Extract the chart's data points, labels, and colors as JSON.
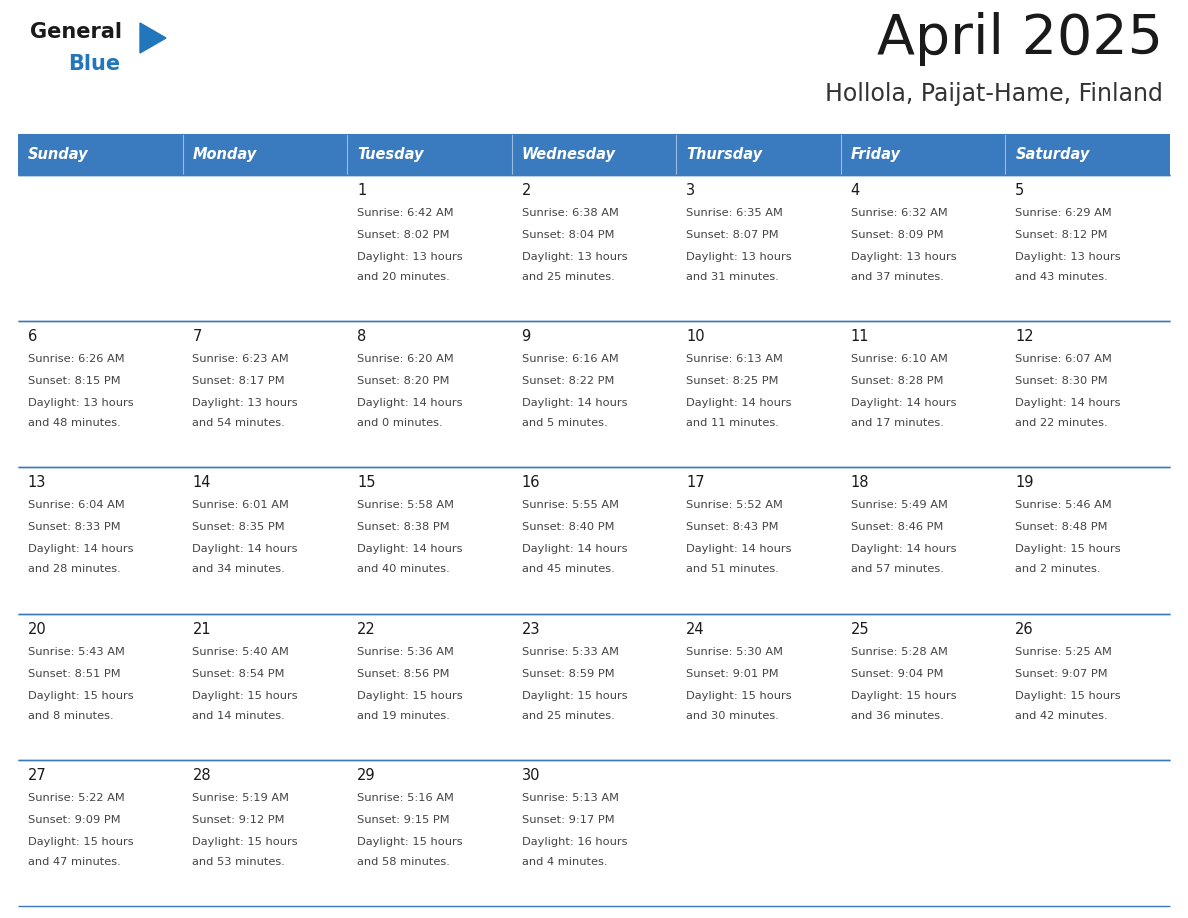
{
  "title": "April 2025",
  "subtitle": "Hollola, Paijat-Hame, Finland",
  "header_bg_color": "#3a7abf",
  "header_text_color": "#ffffff",
  "day_names": [
    "Sunday",
    "Monday",
    "Tuesday",
    "Wednesday",
    "Thursday",
    "Friday",
    "Saturday"
  ],
  "cell_bg_light": "#eef2f7",
  "cell_bg_white": "#ffffff",
  "cell_border_color": "#3a7abf",
  "title_color": "#1a1a1a",
  "subtitle_color": "#333333",
  "day_num_color": "#1a1a1a",
  "day_text_color": "#444444",
  "logo_black": "#1a1a1a",
  "logo_blue": "#2176bc",
  "calendar": [
    [
      {
        "day": "",
        "sunrise": "",
        "sunset": "",
        "daylight": ""
      },
      {
        "day": "",
        "sunrise": "",
        "sunset": "",
        "daylight": ""
      },
      {
        "day": "1",
        "sunrise": "Sunrise: 6:42 AM",
        "sunset": "Sunset: 8:02 PM",
        "daylight": "Daylight: 13 hours\nand 20 minutes."
      },
      {
        "day": "2",
        "sunrise": "Sunrise: 6:38 AM",
        "sunset": "Sunset: 8:04 PM",
        "daylight": "Daylight: 13 hours\nand 25 minutes."
      },
      {
        "day": "3",
        "sunrise": "Sunrise: 6:35 AM",
        "sunset": "Sunset: 8:07 PM",
        "daylight": "Daylight: 13 hours\nand 31 minutes."
      },
      {
        "day": "4",
        "sunrise": "Sunrise: 6:32 AM",
        "sunset": "Sunset: 8:09 PM",
        "daylight": "Daylight: 13 hours\nand 37 minutes."
      },
      {
        "day": "5",
        "sunrise": "Sunrise: 6:29 AM",
        "sunset": "Sunset: 8:12 PM",
        "daylight": "Daylight: 13 hours\nand 43 minutes."
      }
    ],
    [
      {
        "day": "6",
        "sunrise": "Sunrise: 6:26 AM",
        "sunset": "Sunset: 8:15 PM",
        "daylight": "Daylight: 13 hours\nand 48 minutes."
      },
      {
        "day": "7",
        "sunrise": "Sunrise: 6:23 AM",
        "sunset": "Sunset: 8:17 PM",
        "daylight": "Daylight: 13 hours\nand 54 minutes."
      },
      {
        "day": "8",
        "sunrise": "Sunrise: 6:20 AM",
        "sunset": "Sunset: 8:20 PM",
        "daylight": "Daylight: 14 hours\nand 0 minutes."
      },
      {
        "day": "9",
        "sunrise": "Sunrise: 6:16 AM",
        "sunset": "Sunset: 8:22 PM",
        "daylight": "Daylight: 14 hours\nand 5 minutes."
      },
      {
        "day": "10",
        "sunrise": "Sunrise: 6:13 AM",
        "sunset": "Sunset: 8:25 PM",
        "daylight": "Daylight: 14 hours\nand 11 minutes."
      },
      {
        "day": "11",
        "sunrise": "Sunrise: 6:10 AM",
        "sunset": "Sunset: 8:28 PM",
        "daylight": "Daylight: 14 hours\nand 17 minutes."
      },
      {
        "day": "12",
        "sunrise": "Sunrise: 6:07 AM",
        "sunset": "Sunset: 8:30 PM",
        "daylight": "Daylight: 14 hours\nand 22 minutes."
      }
    ],
    [
      {
        "day": "13",
        "sunrise": "Sunrise: 6:04 AM",
        "sunset": "Sunset: 8:33 PM",
        "daylight": "Daylight: 14 hours\nand 28 minutes."
      },
      {
        "day": "14",
        "sunrise": "Sunrise: 6:01 AM",
        "sunset": "Sunset: 8:35 PM",
        "daylight": "Daylight: 14 hours\nand 34 minutes."
      },
      {
        "day": "15",
        "sunrise": "Sunrise: 5:58 AM",
        "sunset": "Sunset: 8:38 PM",
        "daylight": "Daylight: 14 hours\nand 40 minutes."
      },
      {
        "day": "16",
        "sunrise": "Sunrise: 5:55 AM",
        "sunset": "Sunset: 8:40 PM",
        "daylight": "Daylight: 14 hours\nand 45 minutes."
      },
      {
        "day": "17",
        "sunrise": "Sunrise: 5:52 AM",
        "sunset": "Sunset: 8:43 PM",
        "daylight": "Daylight: 14 hours\nand 51 minutes."
      },
      {
        "day": "18",
        "sunrise": "Sunrise: 5:49 AM",
        "sunset": "Sunset: 8:46 PM",
        "daylight": "Daylight: 14 hours\nand 57 minutes."
      },
      {
        "day": "19",
        "sunrise": "Sunrise: 5:46 AM",
        "sunset": "Sunset: 8:48 PM",
        "daylight": "Daylight: 15 hours\nand 2 minutes."
      }
    ],
    [
      {
        "day": "20",
        "sunrise": "Sunrise: 5:43 AM",
        "sunset": "Sunset: 8:51 PM",
        "daylight": "Daylight: 15 hours\nand 8 minutes."
      },
      {
        "day": "21",
        "sunrise": "Sunrise: 5:40 AM",
        "sunset": "Sunset: 8:54 PM",
        "daylight": "Daylight: 15 hours\nand 14 minutes."
      },
      {
        "day": "22",
        "sunrise": "Sunrise: 5:36 AM",
        "sunset": "Sunset: 8:56 PM",
        "daylight": "Daylight: 15 hours\nand 19 minutes."
      },
      {
        "day": "23",
        "sunrise": "Sunrise: 5:33 AM",
        "sunset": "Sunset: 8:59 PM",
        "daylight": "Daylight: 15 hours\nand 25 minutes."
      },
      {
        "day": "24",
        "sunrise": "Sunrise: 5:30 AM",
        "sunset": "Sunset: 9:01 PM",
        "daylight": "Daylight: 15 hours\nand 30 minutes."
      },
      {
        "day": "25",
        "sunrise": "Sunrise: 5:28 AM",
        "sunset": "Sunset: 9:04 PM",
        "daylight": "Daylight: 15 hours\nand 36 minutes."
      },
      {
        "day": "26",
        "sunrise": "Sunrise: 5:25 AM",
        "sunset": "Sunset: 9:07 PM",
        "daylight": "Daylight: 15 hours\nand 42 minutes."
      }
    ],
    [
      {
        "day": "27",
        "sunrise": "Sunrise: 5:22 AM",
        "sunset": "Sunset: 9:09 PM",
        "daylight": "Daylight: 15 hours\nand 47 minutes."
      },
      {
        "day": "28",
        "sunrise": "Sunrise: 5:19 AM",
        "sunset": "Sunset: 9:12 PM",
        "daylight": "Daylight: 15 hours\nand 53 minutes."
      },
      {
        "day": "29",
        "sunrise": "Sunrise: 5:16 AM",
        "sunset": "Sunset: 9:15 PM",
        "daylight": "Daylight: 15 hours\nand 58 minutes."
      },
      {
        "day": "30",
        "sunrise": "Sunrise: 5:13 AM",
        "sunset": "Sunset: 9:17 PM",
        "daylight": "Daylight: 16 hours\nand 4 minutes."
      },
      {
        "day": "",
        "sunrise": "",
        "sunset": "",
        "daylight": ""
      },
      {
        "day": "",
        "sunrise": "",
        "sunset": "",
        "daylight": ""
      },
      {
        "day": "",
        "sunrise": "",
        "sunset": "",
        "daylight": ""
      }
    ]
  ]
}
